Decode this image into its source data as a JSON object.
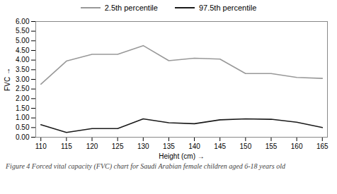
{
  "chart_data": {
    "type": "line",
    "x": [
      110,
      115,
      120,
      125,
      130,
      135,
      140,
      145,
      150,
      155,
      160,
      165
    ],
    "series": [
      {
        "name": "2.5th percentile",
        "color": "#999999",
        "values": [
          2.75,
          3.95,
          4.3,
          4.3,
          4.75,
          3.97,
          4.1,
          4.05,
          3.3,
          3.3,
          3.1,
          3.05
        ]
      },
      {
        "name": "97.5th percentile",
        "color": "#1a1a1a",
        "values": [
          0.65,
          0.25,
          0.45,
          0.45,
          0.95,
          0.75,
          0.7,
          0.9,
          0.95,
          0.93,
          0.78,
          0.5
        ]
      }
    ],
    "xlabel": "Height (cm)",
    "ylabel": "FVC",
    "caption": "Figure 4 Forced vital capacity (FVC) chart for Saudi Arabian female children aged 6-18 years old",
    "xlim": [
      109,
      166
    ],
    "ylim": [
      0,
      6
    ],
    "xticks": [
      110,
      115,
      120,
      125,
      130,
      135,
      140,
      145,
      150,
      155,
      160,
      165
    ],
    "yticks": [
      {
        "value": 0,
        "label": "0.00"
      },
      {
        "value": 0.5,
        "label": "0.50"
      },
      {
        "value": 1,
        "label": "1.00"
      },
      {
        "value": 1.5,
        "label": "1.50"
      },
      {
        "value": 2,
        "label": "2.00"
      },
      {
        "value": 2.5,
        "label": "2.50"
      },
      {
        "value": 3,
        "label": "3.00"
      },
      {
        "value": 3.5,
        "label": "3.50"
      },
      {
        "value": 4,
        "label": "4.00"
      },
      {
        "value": 4.5,
        "label": "4.50"
      },
      {
        "value": 5,
        "label": "5.00"
      },
      {
        "value": 5.5,
        "label": "5.50"
      },
      {
        "value": 6,
        "label": "6.00"
      }
    ],
    "grid": false,
    "legend": "top"
  }
}
